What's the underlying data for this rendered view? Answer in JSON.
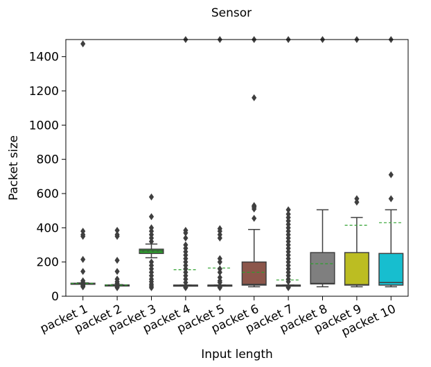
{
  "chart_data": {
    "type": "box",
    "title": "Sensor",
    "xlabel": "Input length",
    "ylabel": "Packet size",
    "ylim": [
      0,
      1500
    ],
    "yticks": [
      0,
      200,
      400,
      600,
      800,
      1000,
      1200,
      1400
    ],
    "grid": false,
    "legend": "none",
    "categories": [
      "packet 1",
      "packet 2",
      "packet 3",
      "packet 4",
      "packet 5",
      "packet 6",
      "packet 7",
      "packet 8",
      "packet 9",
      "packet 10"
    ],
    "colors": [
      "#1f77b4",
      "#ff7f0e",
      "#2ca02c",
      "#d62728",
      "#9467bd",
      "#8c564b",
      "#e377c2",
      "#7f7f7f",
      "#bcbd22",
      "#17becf"
    ],
    "mean_line_color": "#2ca02c",
    "boxes": [
      {
        "category": "packet 1",
        "whisker_low": 72,
        "q1": 72,
        "median": 74,
        "q3": 76,
        "whisker_high": 78,
        "mean": 75,
        "outliers": [
          1475,
          380,
          360,
          350,
          215,
          145,
          90,
          80,
          70,
          65,
          60,
          55
        ]
      },
      {
        "category": "packet 2",
        "whisker_low": 63,
        "q1": 63,
        "median": 65,
        "q3": 66,
        "whisker_high": 68,
        "mean": 65,
        "outliers": [
          385,
          360,
          350,
          210,
          145,
          100,
          85,
          75,
          60,
          55,
          50
        ]
      },
      {
        "category": "packet 3",
        "whisker_low": 225,
        "q1": 250,
        "median": 265,
        "q3": 275,
        "whisker_high": 305,
        "mean": 262,
        "outliers": [
          580,
          465,
          400,
          380,
          360,
          340,
          320,
          200,
          180,
          160,
          140,
          120,
          100,
          85,
          70,
          60,
          50
        ]
      },
      {
        "category": "packet 4",
        "whisker_low": 63,
        "q1": 63,
        "median": 65,
        "q3": 65,
        "whisker_high": 66,
        "mean": 155,
        "outliers": [
          1500,
          385,
          370,
          340,
          300,
          280,
          260,
          240,
          220,
          200,
          180,
          160,
          140,
          120,
          100,
          80,
          55,
          50
        ]
      },
      {
        "category": "packet 5",
        "whisker_low": 63,
        "q1": 63,
        "median": 65,
        "q3": 65,
        "whisker_high": 66,
        "mean": 165,
        "outliers": [
          1500,
          395,
          380,
          360,
          340,
          220,
          200,
          160,
          140,
          110,
          90,
          80,
          60,
          55,
          50
        ]
      },
      {
        "category": "packet 6",
        "whisker_low": 55,
        "q1": 65,
        "median": 70,
        "q3": 200,
        "whisker_high": 390,
        "mean": 140,
        "outliers": [
          1500,
          1160,
          530,
          525,
          520,
          510,
          455
        ]
      },
      {
        "category": "packet 7",
        "whisker_low": 63,
        "q1": 63,
        "median": 65,
        "q3": 65,
        "whisker_high": 66,
        "mean": 95,
        "outliers": [
          1500,
          505,
          480,
          460,
          440,
          420,
          400,
          380,
          360,
          340,
          320,
          300,
          280,
          260,
          240,
          220,
          200,
          180,
          160,
          140,
          120,
          100,
          85,
          55,
          50
        ]
      },
      {
        "category": "packet 8",
        "whisker_low": 55,
        "q1": 72,
        "median": 75,
        "q3": 255,
        "whisker_high": 505,
        "mean": 190,
        "outliers": [
          1500
        ]
      },
      {
        "category": "packet 9",
        "whisker_low": 55,
        "q1": 65,
        "median": 68,
        "q3": 255,
        "whisker_high": 460,
        "mean": 415,
        "outliers": [
          1500,
          570,
          550
        ]
      },
      {
        "category": "packet 10",
        "whisker_low": 55,
        "q1": 65,
        "median": 80,
        "q3": 250,
        "whisker_high": 505,
        "mean": 430,
        "outliers": [
          1500,
          710,
          570
        ]
      }
    ]
  }
}
